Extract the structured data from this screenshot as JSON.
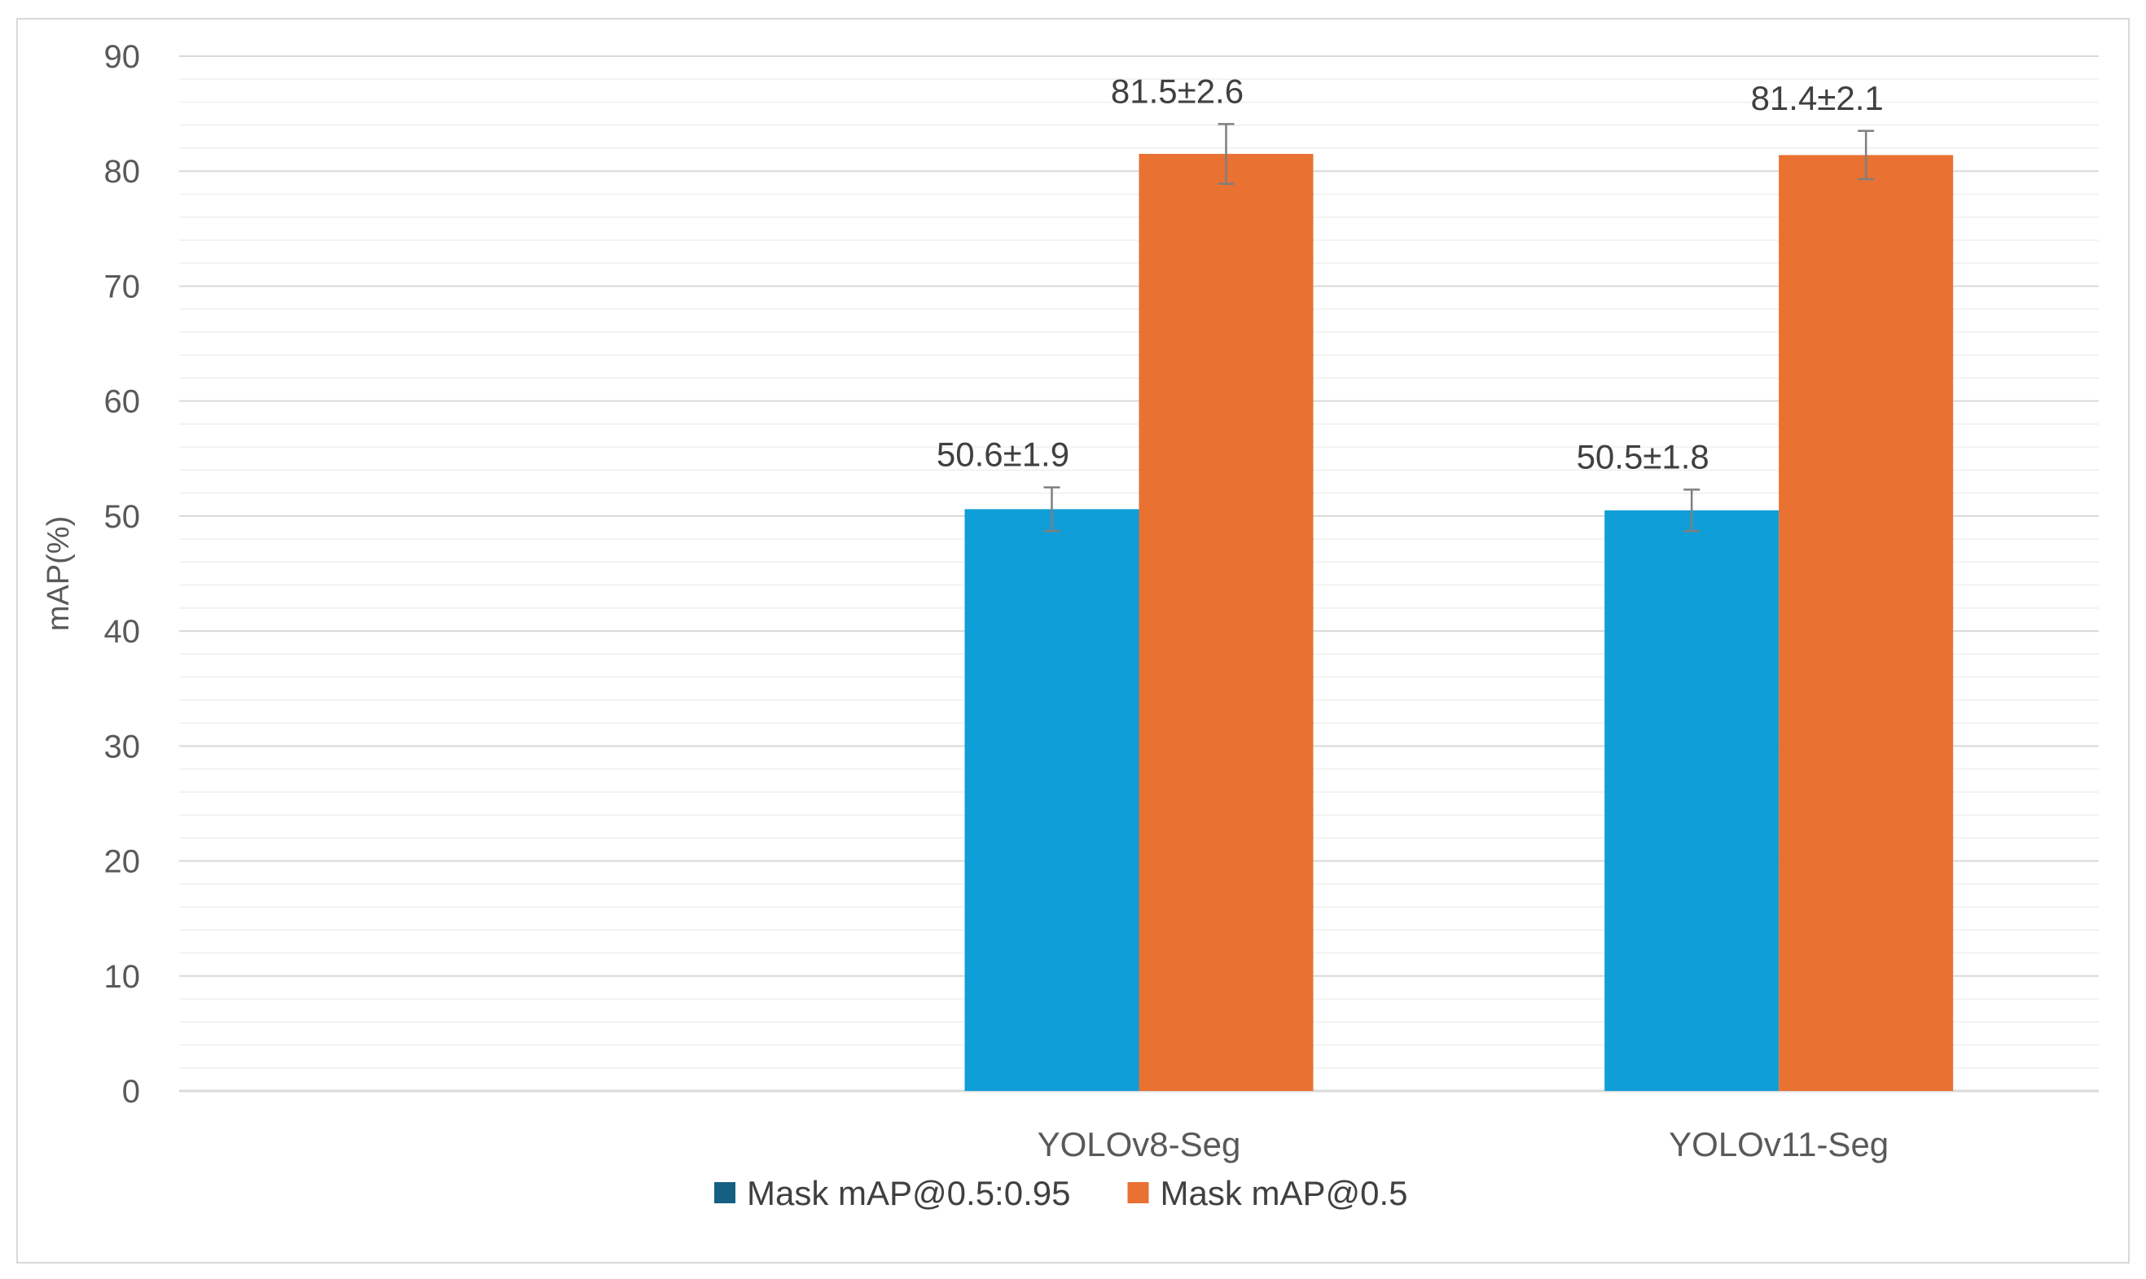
{
  "chart_data": {
    "type": "bar",
    "categories": [
      "",
      "YOLOv8-Seg",
      "YOLOv11-Seg"
    ],
    "series": [
      {
        "name": "Mask mAP@0.5:0.95",
        "color": "#109ed8",
        "legend_color": "#156082",
        "values": [
          null,
          50.6,
          50.5
        ],
        "errors": [
          null,
          1.9,
          1.8
        ],
        "labels": [
          "",
          "50.6±1.9",
          "50.5±1.8"
        ]
      },
      {
        "name": "Mask mAP@0.5",
        "color": "#e97132",
        "legend_color": "#e97132",
        "values": [
          null,
          81.5,
          81.4
        ],
        "errors": [
          null,
          2.6,
          2.1
        ],
        "labels": [
          "",
          "81.5±2.6",
          "81.4±2.1"
        ]
      }
    ],
    "title": "",
    "xlabel": "",
    "ylabel": "mAP(%)",
    "ylim": [
      0,
      90
    ],
    "yticks": [
      "0",
      "10",
      "20",
      "30",
      "40",
      "50",
      "60",
      "70",
      "80",
      "90"
    ],
    "grid": true,
    "legend_position": "bottom"
  }
}
